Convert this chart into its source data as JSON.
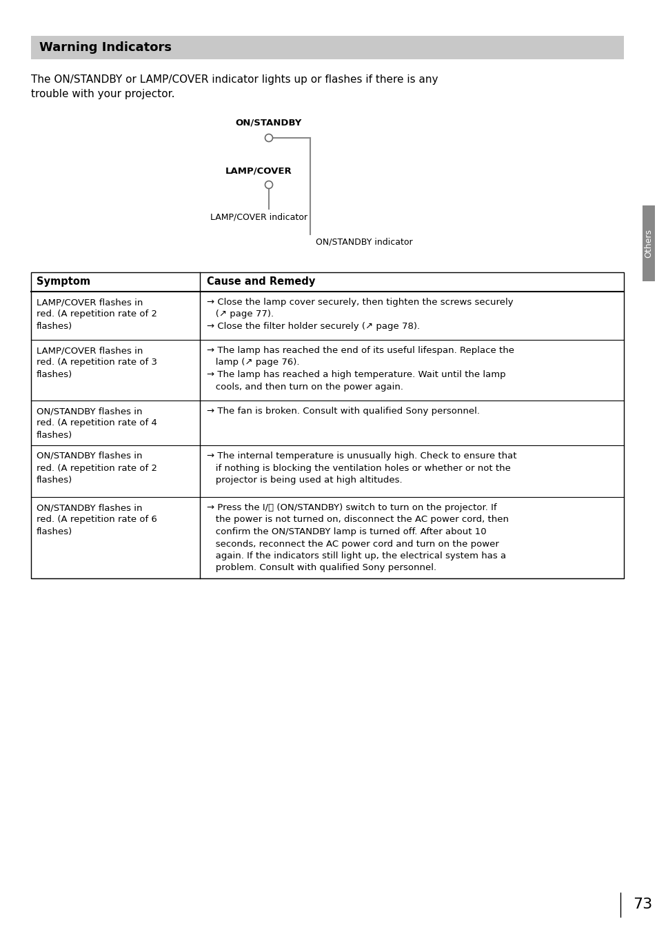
{
  "title": "Warning Indicators",
  "title_bg": "#c8c8c8",
  "page_bg": "#ffffff",
  "page_number": "73",
  "intro_text": "The ON/STANDBY or LAMP/COVER indicator lights up or flashes if there is any\ntrouble with your projector.",
  "diagram": {
    "on_standby_label": "ON/STANDBY",
    "lamp_cover_label": "LAMP/COVER",
    "lamp_cover_indicator_label": "LAMP/COVER indicator",
    "on_standby_indicator_label": "ON/STANDBY indicator"
  },
  "table_headers": [
    "Symptom",
    "Cause and Remedy"
  ],
  "table_col_ratio": 0.285,
  "table_rows": [
    {
      "symptom": "LAMP/COVER flashes in\nred. (A repetition rate of 2\nflashes)",
      "remedy": "→ Close the lamp cover securely, then tighten the screws securely\n   (↗ page 77).\n→ Close the filter holder securely (↗ page 78)."
    },
    {
      "symptom": "LAMP/COVER flashes in\nred. (A repetition rate of 3\nflashes)",
      "remedy": "→ The lamp has reached the end of its useful lifespan. Replace the\n   lamp (↗ page 76).\n→ The lamp has reached a high temperature. Wait until the lamp\n   cools, and then turn on the power again."
    },
    {
      "symptom": "ON/STANDBY flashes in\nred. (A repetition rate of 4\nflashes)",
      "remedy": "→ The fan is broken. Consult with qualified Sony personnel."
    },
    {
      "symptom": "ON/STANDBY flashes in\nred. (A repetition rate of 2\nflashes)",
      "remedy": "→ The internal temperature is unusually high. Check to ensure that\n   if nothing is blocking the ventilation holes or whether or not the\n   projector is being used at high altitudes."
    },
    {
      "symptom": "ON/STANDBY flashes in\nred. (A repetition rate of 6\nflashes)",
      "remedy": "→ Press the I/⏻ (ON/STANDBY) switch to turn on the projector. If\n   the power is not turned on, disconnect the AC power cord, then\n   confirm the ON/STANDBY lamp is turned off. After about 10\n   seconds, reconnect the AC power cord and turn on the power\n   again. If the indicators still light up, the electrical system has a\n   problem. Consult with qualified Sony personnel."
    }
  ],
  "sidebar_label": "Others",
  "sidebar_bg": "#888888"
}
